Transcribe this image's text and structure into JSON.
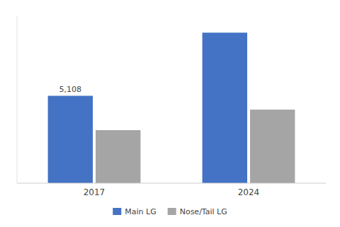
{
  "chart_data": {
    "type": "bar",
    "categories": [
      "2017",
      "2024"
    ],
    "series": [
      {
        "name": "Main LG",
        "color": "#4472C4",
        "values": [
          5108,
          8800
        ]
      },
      {
        "name": "Nose/Tail LG",
        "color": "#A5A5A5",
        "values": [
          3100,
          4300
        ]
      }
    ],
    "annotations": [
      {
        "text": "5,108",
        "x": "2017",
        "y": 5108,
        "series": "Main LG"
      }
    ],
    "ylim": [
      0,
      9800
    ],
    "yticks": [],
    "tick_labels": "x",
    "grid": false,
    "legend": "bottom"
  }
}
